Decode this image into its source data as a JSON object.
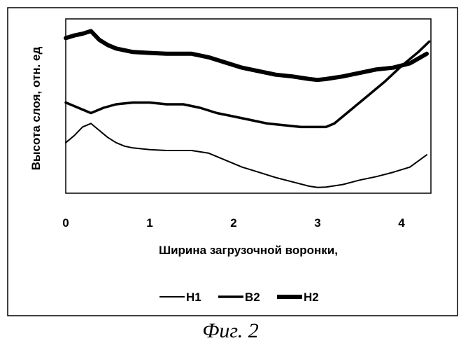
{
  "caption": "Фиг. 2",
  "chart_data": {
    "type": "line",
    "title": "",
    "xlabel": "Ширина загрузочной воронки,",
    "ylabel": "Высота слоя, отн. ед",
    "xlim": [
      0,
      4.35
    ],
    "ylim": [
      0,
      1
    ],
    "xticks": [
      "0",
      "1",
      "2",
      "3",
      "4"
    ],
    "xtick_values": [
      0,
      1,
      2,
      3,
      4
    ],
    "yticks": [],
    "grid": false,
    "legend_position": "bottom",
    "series": [
      {
        "name": "H1",
        "style": "thin",
        "points": [
          [
            0,
            0.29
          ],
          [
            0.1,
            0.33
          ],
          [
            0.2,
            0.38
          ],
          [
            0.3,
            0.4
          ],
          [
            0.4,
            0.36
          ],
          [
            0.5,
            0.32
          ],
          [
            0.6,
            0.29
          ],
          [
            0.7,
            0.27
          ],
          [
            0.8,
            0.26
          ],
          [
            0.9,
            0.255
          ],
          [
            1.0,
            0.25
          ],
          [
            1.2,
            0.245
          ],
          [
            1.5,
            0.245
          ],
          [
            1.7,
            0.23
          ],
          [
            1.9,
            0.19
          ],
          [
            2.1,
            0.15
          ],
          [
            2.3,
            0.12
          ],
          [
            2.5,
            0.09
          ],
          [
            2.7,
            0.065
          ],
          [
            2.9,
            0.04
          ],
          [
            3.0,
            0.033
          ],
          [
            3.1,
            0.035
          ],
          [
            3.3,
            0.05
          ],
          [
            3.5,
            0.075
          ],
          [
            3.7,
            0.095
          ],
          [
            3.9,
            0.12
          ],
          [
            4.1,
            0.15
          ],
          [
            4.3,
            0.22
          ]
        ]
      },
      {
        "name": "B2",
        "style": "medium",
        "points": [
          [
            0,
            0.52
          ],
          [
            0.15,
            0.49
          ],
          [
            0.3,
            0.46
          ],
          [
            0.45,
            0.49
          ],
          [
            0.6,
            0.51
          ],
          [
            0.8,
            0.52
          ],
          [
            1.0,
            0.52
          ],
          [
            1.2,
            0.51
          ],
          [
            1.4,
            0.51
          ],
          [
            1.6,
            0.49
          ],
          [
            1.8,
            0.46
          ],
          [
            2.0,
            0.44
          ],
          [
            2.2,
            0.42
          ],
          [
            2.4,
            0.4
          ],
          [
            2.6,
            0.39
          ],
          [
            2.8,
            0.38
          ],
          [
            3.0,
            0.38
          ],
          [
            3.1,
            0.38
          ],
          [
            3.2,
            0.4
          ],
          [
            3.4,
            0.48
          ],
          [
            3.6,
            0.56
          ],
          [
            3.8,
            0.64
          ],
          [
            4.0,
            0.73
          ],
          [
            4.2,
            0.81
          ],
          [
            4.33,
            0.87
          ]
        ]
      },
      {
        "name": "H2",
        "style": "thick",
        "points": [
          [
            0,
            0.89
          ],
          [
            0.1,
            0.905
          ],
          [
            0.2,
            0.915
          ],
          [
            0.3,
            0.93
          ],
          [
            0.4,
            0.88
          ],
          [
            0.5,
            0.85
          ],
          [
            0.6,
            0.83
          ],
          [
            0.8,
            0.81
          ],
          [
            1.0,
            0.805
          ],
          [
            1.2,
            0.8
          ],
          [
            1.5,
            0.8
          ],
          [
            1.7,
            0.78
          ],
          [
            1.9,
            0.75
          ],
          [
            2.1,
            0.72
          ],
          [
            2.3,
            0.7
          ],
          [
            2.5,
            0.68
          ],
          [
            2.7,
            0.67
          ],
          [
            2.9,
            0.655
          ],
          [
            3.0,
            0.65
          ],
          [
            3.1,
            0.655
          ],
          [
            3.3,
            0.67
          ],
          [
            3.5,
            0.69
          ],
          [
            3.7,
            0.71
          ],
          [
            3.9,
            0.72
          ],
          [
            4.1,
            0.745
          ],
          [
            4.3,
            0.8
          ]
        ]
      }
    ]
  }
}
